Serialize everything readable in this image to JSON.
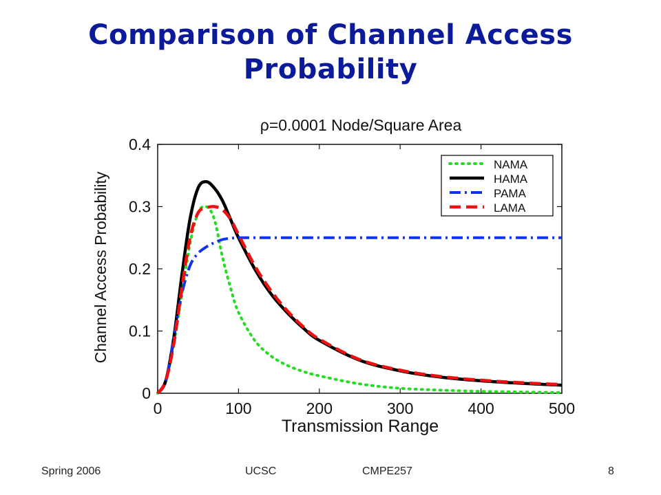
{
  "slide": {
    "title_line1": "Comparison of Channel Access",
    "title_line2": "Probability"
  },
  "footer": {
    "left": "Spring 2006",
    "center": "UCSC",
    "right_center": "CMPE257",
    "page": "8"
  },
  "chart_data": {
    "type": "line",
    "title": "ρ=0.0001 Node/Square Area",
    "xlabel": "Transmission Range",
    "ylabel": "Channel Access Probability",
    "xlim": [
      0,
      500
    ],
    "ylim": [
      0,
      0.4
    ],
    "xticks": [
      0,
      100,
      200,
      300,
      400,
      500
    ],
    "xtick_labels": [
      "0",
      "100",
      "200",
      "300",
      "400",
      "500"
    ],
    "yticks": [
      0,
      0.1,
      0.2,
      0.3,
      0.4
    ],
    "ytick_labels": [
      "0",
      "0.1",
      "0.2",
      "0.3",
      "0.4"
    ],
    "grid": false,
    "legend_position": "top-right",
    "x": [
      0,
      10,
      20,
      30,
      40,
      50,
      60,
      70,
      80,
      90,
      100,
      120,
      140,
      160,
      180,
      200,
      250,
      300,
      350,
      400,
      450,
      500
    ],
    "series": [
      {
        "name": "NAMA",
        "color": "#22dd22",
        "style": "dotted",
        "values": [
          0,
          0.02,
          0.08,
          0.16,
          0.24,
          0.29,
          0.3,
          0.28,
          0.22,
          0.17,
          0.13,
          0.085,
          0.06,
          0.045,
          0.035,
          0.028,
          0.015,
          0.008,
          0.005,
          0.003,
          0.002,
          0.001
        ]
      },
      {
        "name": "HAMA",
        "color": "#000000",
        "style": "solid",
        "values": [
          0,
          0.02,
          0.09,
          0.19,
          0.28,
          0.33,
          0.34,
          0.33,
          0.31,
          0.28,
          0.25,
          0.2,
          0.16,
          0.13,
          0.105,
          0.085,
          0.053,
          0.036,
          0.026,
          0.02,
          0.016,
          0.013
        ]
      },
      {
        "name": "PAMA",
        "color": "#1133ee",
        "style": "dashdot",
        "values": [
          0,
          0.02,
          0.09,
          0.16,
          0.205,
          0.225,
          0.235,
          0.242,
          0.247,
          0.249,
          0.25,
          0.25,
          0.25,
          0.25,
          0.25,
          0.25,
          0.25,
          0.25,
          0.25,
          0.25,
          0.25,
          0.25
        ]
      },
      {
        "name": "LAMA",
        "color": "#ee1111",
        "style": "dashed",
        "values": [
          0,
          0.02,
          0.08,
          0.17,
          0.25,
          0.29,
          0.298,
          0.3,
          0.295,
          0.28,
          0.255,
          0.205,
          0.165,
          0.133,
          0.107,
          0.087,
          0.054,
          0.037,
          0.027,
          0.021,
          0.017,
          0.014
        ]
      }
    ]
  }
}
